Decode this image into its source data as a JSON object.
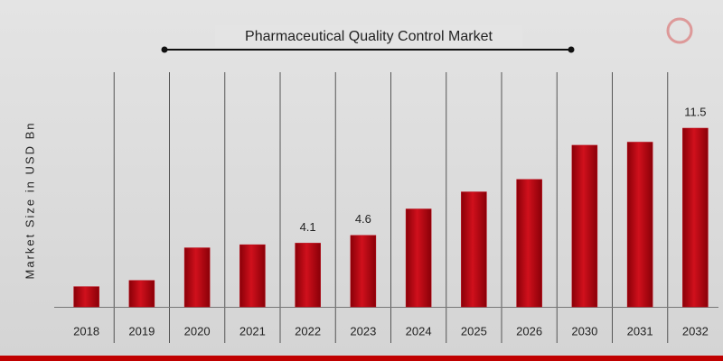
{
  "chart_data": {
    "type": "bar",
    "title": "Pharmaceutical Quality Control Market",
    "y_label": "Market Size in USD Bn",
    "categories": [
      "2018",
      "2019",
      "2020",
      "2021",
      "2022",
      "2023",
      "2024",
      "2025",
      "2026",
      "2030",
      "2031",
      "2032"
    ],
    "values": [
      1.3,
      1.7,
      3.8,
      4.0,
      4.1,
      4.6,
      6.3,
      7.4,
      8.2,
      10.4,
      10.6,
      11.5
    ],
    "value_labels": [
      null,
      null,
      null,
      null,
      "4.1",
      "4.6",
      null,
      null,
      null,
      null,
      null,
      "11.5"
    ],
    "color": "#b8000f"
  }
}
